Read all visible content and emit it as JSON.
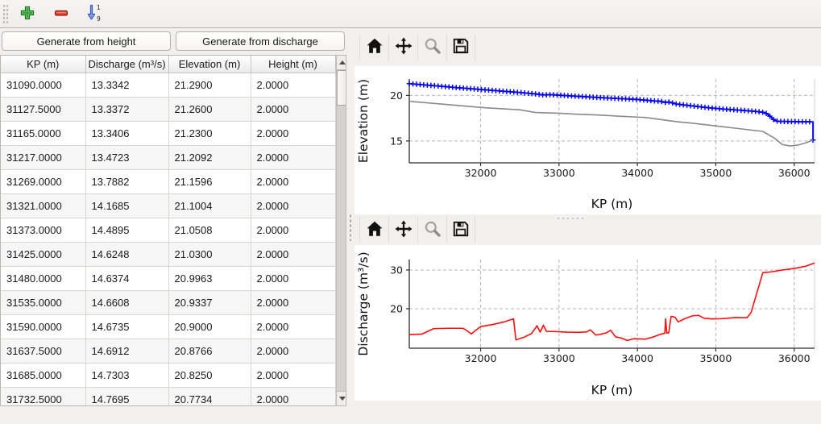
{
  "main_toolbar": {
    "buttons": [
      {
        "name": "add-row",
        "icon": "plus-icon",
        "color": "#3aa23d"
      },
      {
        "name": "remove-row",
        "icon": "minus-icon",
        "color": "#e43c2c"
      },
      {
        "name": "sort-rows",
        "icon": "sort-numeric-descending-icon",
        "color": "#8aa0e6",
        "labels": [
          "1",
          "9"
        ]
      }
    ]
  },
  "left_panel": {
    "buttons": {
      "generate_from_height": "Generate from height",
      "generate_from_discharge": "Generate from discharge"
    },
    "table": {
      "columns": [
        "KP (m)",
        "Discharge (m³/s)",
        "Elevation (m)",
        "Height (m)"
      ],
      "rows": [
        [
          "31090.0000",
          "13.3342",
          "21.2900",
          "2.0000"
        ],
        [
          "31127.5000",
          "13.3372",
          "21.2600",
          "2.0000"
        ],
        [
          "31165.0000",
          "13.3406",
          "21.2300",
          "2.0000"
        ],
        [
          "31217.0000",
          "13.4723",
          "21.2092",
          "2.0000"
        ],
        [
          "31269.0000",
          "13.7882",
          "21.1596",
          "2.0000"
        ],
        [
          "31321.0000",
          "14.1685",
          "21.1004",
          "2.0000"
        ],
        [
          "31373.0000",
          "14.4895",
          "21.0508",
          "2.0000"
        ],
        [
          "31425.0000",
          "14.6248",
          "21.0300",
          "2.0000"
        ],
        [
          "31480.0000",
          "14.6374",
          "20.9963",
          "2.0000"
        ],
        [
          "31535.0000",
          "14.6608",
          "20.9337",
          "2.0000"
        ],
        [
          "31590.0000",
          "14.6735",
          "20.9000",
          "2.0000"
        ],
        [
          "31637.5000",
          "14.6912",
          "20.8766",
          "2.0000"
        ],
        [
          "31685.0000",
          "14.7303",
          "20.8250",
          "2.0000"
        ],
        [
          "31732.5000",
          "14.7695",
          "20.7734",
          "2.0000"
        ]
      ]
    }
  },
  "plot_toolbar": {
    "icons": [
      "home-icon",
      "pan-icon",
      "zoom-icon",
      "save-icon"
    ]
  },
  "chart_data": [
    {
      "type": "line",
      "title": "",
      "xlabel": "KP (m)",
      "ylabel": "Elevation (m)",
      "xlim": [
        31090,
        36260
      ],
      "ylim": [
        12.6,
        21.8
      ],
      "xticks": [
        32000,
        33000,
        34000,
        35000,
        36000
      ],
      "yticks": [
        15,
        20
      ],
      "grid": true,
      "legend": "none",
      "series": [
        {
          "name": "water-elevation",
          "color": "#0000ee",
          "marker": "+",
          "marker_step": 46,
          "points": [
            [
              31090,
              21.29
            ],
            [
              31300,
              21.14
            ],
            [
              31500,
              21.0
            ],
            [
              31700,
              20.85
            ],
            [
              31900,
              20.72
            ],
            [
              32100,
              20.58
            ],
            [
              32300,
              20.45
            ],
            [
              32500,
              20.32
            ],
            [
              32700,
              20.16
            ],
            [
              32800,
              20.05
            ],
            [
              32900,
              20.08
            ],
            [
              33100,
              19.97
            ],
            [
              33300,
              19.87
            ],
            [
              33500,
              19.77
            ],
            [
              33700,
              19.68
            ],
            [
              33900,
              19.6
            ],
            [
              34000,
              19.55
            ],
            [
              34100,
              19.48
            ],
            [
              34200,
              19.4
            ],
            [
              34300,
              19.35
            ],
            [
              34350,
              19.22
            ],
            [
              34400,
              19.28
            ],
            [
              34500,
              19.05
            ],
            [
              34700,
              18.85
            ],
            [
              34900,
              18.65
            ],
            [
              35100,
              18.5
            ],
            [
              35300,
              18.38
            ],
            [
              35500,
              18.25
            ],
            [
              35600,
              18.15
            ],
            [
              35650,
              18.0
            ],
            [
              35700,
              17.65
            ],
            [
              35750,
              17.25
            ],
            [
              35800,
              17.15
            ],
            [
              36000,
              17.12
            ],
            [
              36240,
              17.1
            ],
            [
              36240,
              15.1
            ]
          ],
          "extra_markers": [
            [
              36240,
              15.1
            ]
          ]
        },
        {
          "name": "bed-elevation",
          "color": "#8a8a8a",
          "marker": "none",
          "points": [
            [
              31090,
              19.35
            ],
            [
              31500,
              19.05
            ],
            [
              31900,
              18.75
            ],
            [
              32100,
              18.62
            ],
            [
              32300,
              18.52
            ],
            [
              32500,
              18.42
            ],
            [
              32700,
              18.12
            ],
            [
              33000,
              18.05
            ],
            [
              33200,
              17.95
            ],
            [
              33500,
              17.85
            ],
            [
              33800,
              17.7
            ],
            [
              34000,
              17.62
            ],
            [
              34100,
              17.58
            ],
            [
              34300,
              17.35
            ],
            [
              34500,
              17.12
            ],
            [
              34700,
              16.95
            ],
            [
              34900,
              16.75
            ],
            [
              35100,
              16.55
            ],
            [
              35300,
              16.35
            ],
            [
              35500,
              16.15
            ],
            [
              35600,
              16.05
            ],
            [
              35750,
              15.3
            ],
            [
              35850,
              14.6
            ],
            [
              35950,
              14.45
            ],
            [
              36050,
              14.55
            ],
            [
              36150,
              14.8
            ],
            [
              36240,
              15.1
            ]
          ]
        }
      ]
    },
    {
      "type": "line",
      "title": "",
      "xlabel": "KP (m)",
      "ylabel": "Discharge (m³/s)",
      "xlim": [
        31090,
        36260
      ],
      "ylim": [
        9.8,
        32.7
      ],
      "xticks": [
        32000,
        33000,
        34000,
        35000,
        36000
      ],
      "yticks": [
        20,
        30
      ],
      "grid": true,
      "legend": "none",
      "series": [
        {
          "name": "discharge",
          "color": "#ff0f0f",
          "marker": "none",
          "points": [
            [
              31090,
              13.33
            ],
            [
              31250,
              13.45
            ],
            [
              31400,
              14.85
            ],
            [
              31600,
              14.95
            ],
            [
              31770,
              14.95
            ],
            [
              31800,
              14.7
            ],
            [
              31880,
              13.5
            ],
            [
              32000,
              15.4
            ],
            [
              32150,
              15.9
            ],
            [
              32300,
              16.6
            ],
            [
              32420,
              17.4
            ],
            [
              32450,
              11.95
            ],
            [
              32550,
              12.6
            ],
            [
              32650,
              13.6
            ],
            [
              32720,
              15.6
            ],
            [
              32760,
              13.95
            ],
            [
              32800,
              15.75
            ],
            [
              32840,
              14.15
            ],
            [
              32950,
              14.1
            ],
            [
              33100,
              13.95
            ],
            [
              33250,
              13.9
            ],
            [
              33350,
              14.0
            ],
            [
              33400,
              14.55
            ],
            [
              33470,
              13.2
            ],
            [
              33520,
              13.35
            ],
            [
              33600,
              13.75
            ],
            [
              33660,
              14.45
            ],
            [
              33720,
              12.75
            ],
            [
              33800,
              12.4
            ],
            [
              33870,
              11.8
            ],
            [
              33950,
              12.25
            ],
            [
              34100,
              12.15
            ],
            [
              34200,
              12.7
            ],
            [
              34300,
              13.45
            ],
            [
              34350,
              13.65
            ],
            [
              34360,
              17.4
            ],
            [
              34375,
              13.7
            ],
            [
              34400,
              13.8
            ],
            [
              34430,
              18.05
            ],
            [
              34480,
              17.8
            ],
            [
              34520,
              16.6
            ],
            [
              34600,
              17.4
            ],
            [
              34700,
              18.15
            ],
            [
              34780,
              18.3
            ],
            [
              34850,
              17.55
            ],
            [
              34950,
              17.35
            ],
            [
              35050,
              17.4
            ],
            [
              35150,
              17.55
            ],
            [
              35250,
              17.75
            ],
            [
              35320,
              17.7
            ],
            [
              35400,
              17.7
            ],
            [
              35450,
              19.0
            ],
            [
              35600,
              29.3
            ],
            [
              35700,
              29.5
            ],
            [
              35850,
              30.0
            ],
            [
              36000,
              30.4
            ],
            [
              36150,
              31.0
            ],
            [
              36260,
              31.8
            ]
          ]
        }
      ]
    }
  ],
  "style": {
    "grid_color": "#b5b3b0",
    "spine_color": "#2b2b2b",
    "right_spine_color": "#cfcfcf",
    "tick_label_color": "#1a1a1a"
  }
}
